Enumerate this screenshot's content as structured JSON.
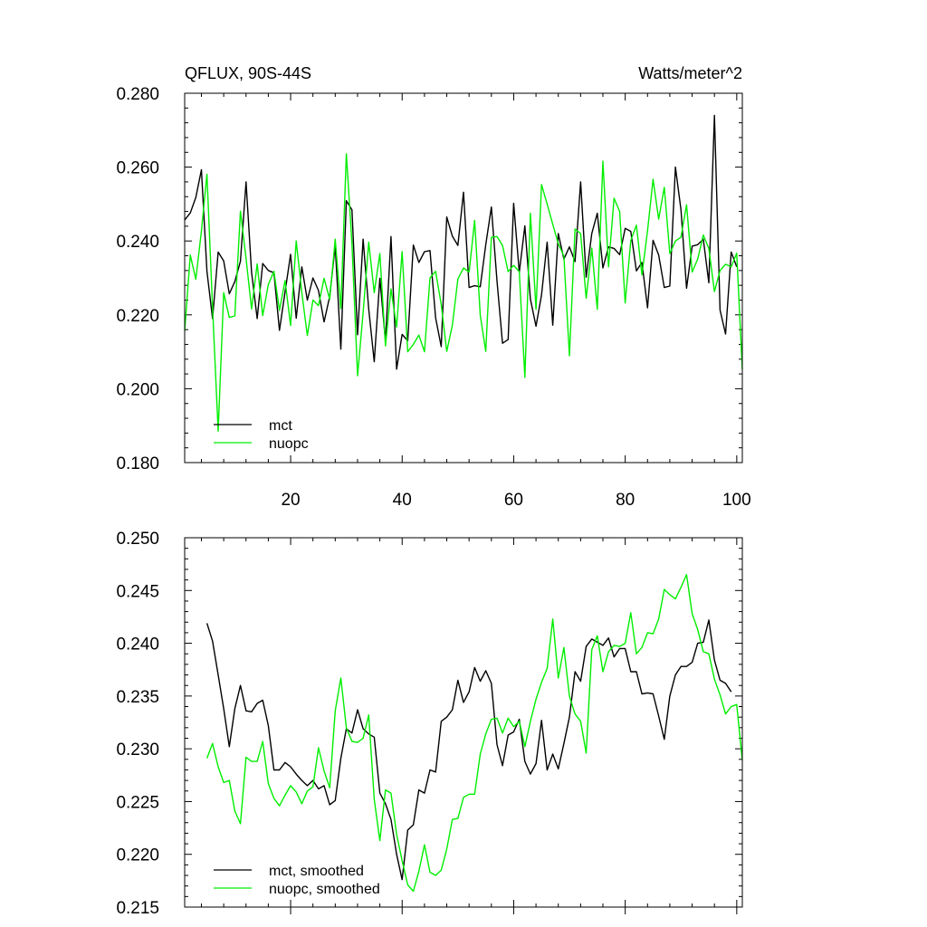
{
  "chart_data": [
    {
      "type": "line",
      "title": "QFLUX, 90S-44S",
      "units": "Watts/meter^2",
      "xlim": [
        1,
        101
      ],
      "ylim": [
        0.18,
        0.28
      ],
      "xticks": [
        20,
        40,
        60,
        80,
        100
      ],
      "xtick_labels": [
        "20",
        "40",
        "60",
        "80",
        "100"
      ],
      "yticks": [
        0.18,
        0.2,
        0.22,
        0.24,
        0.26,
        0.28
      ],
      "ytick_labels": [
        "0.180",
        "0.200",
        "0.220",
        "0.240",
        "0.260",
        "0.280"
      ],
      "legend_position": "bottom-left",
      "series": [
        {
          "name": "mct",
          "color": "#000000",
          "values": [
            0.2457,
            0.2476,
            0.2518,
            0.2593,
            0.2318,
            0.219,
            0.237,
            0.2346,
            0.2257,
            0.229,
            0.2345,
            0.256,
            0.2315,
            0.219,
            0.2339,
            0.232,
            0.2314,
            0.2158,
            0.2262,
            0.2364,
            0.2191,
            0.233,
            0.224,
            0.23,
            0.2266,
            0.2181,
            0.225,
            0.2387,
            0.2107,
            0.2509,
            0.2484,
            0.2146,
            0.2405,
            0.2216,
            0.2073,
            0.2299,
            0.2129,
            0.2412,
            0.2053,
            0.2147,
            0.213,
            0.2389,
            0.2342,
            0.2371,
            0.2374,
            0.2192,
            0.2114,
            0.2465,
            0.2413,
            0.2388,
            0.2532,
            0.2274,
            0.2279,
            0.2276,
            0.239,
            0.2492,
            0.2292,
            0.2123,
            0.2133,
            0.2502,
            0.2315,
            0.2441,
            0.2243,
            0.2169,
            0.2254,
            0.2397,
            0.2172,
            0.242,
            0.2351,
            0.2384,
            0.2344,
            0.256,
            0.2302,
            0.242,
            0.2475,
            0.2327,
            0.2384,
            0.238,
            0.2363,
            0.2434,
            0.2426,
            0.2319,
            0.2342,
            0.2219,
            0.2402,
            0.2362,
            0.2274,
            0.2278,
            0.26,
            0.2485,
            0.2272,
            0.2386,
            0.239,
            0.2405,
            0.2287,
            0.274,
            0.2213,
            0.2148,
            0.237,
            0.233
          ]
        },
        {
          "name": "nuopc",
          "color": "#00ee00",
          "values": [
            0.2157,
            0.2362,
            0.2296,
            0.2427,
            0.2581,
            0.222,
            0.1885,
            0.226,
            0.2193,
            0.2197,
            0.2481,
            0.2353,
            0.2216,
            0.2338,
            0.2198,
            0.2282,
            0.2318,
            0.2212,
            0.2293,
            0.2171,
            0.24,
            0.226,
            0.2144,
            0.224,
            0.2225,
            0.2299,
            0.2242,
            0.2405,
            0.2217,
            0.2636,
            0.2393,
            0.2035,
            0.2206,
            0.2397,
            0.226,
            0.2366,
            0.2116,
            0.227,
            0.2167,
            0.2371,
            0.21,
            0.212,
            0.2145,
            0.21,
            0.23,
            0.2318,
            0.2228,
            0.2101,
            0.2172,
            0.2297,
            0.2327,
            0.2316,
            0.2456,
            0.2199,
            0.2101,
            0.241,
            0.2412,
            0.2388,
            0.2317,
            0.2334,
            0.2317,
            0.2031,
            0.2475,
            0.2215,
            0.2553,
            0.25,
            0.2445,
            0.2393,
            0.2359,
            0.2089,
            0.2432,
            0.242,
            0.2245,
            0.2381,
            0.2215,
            0.2616,
            0.233,
            0.2516,
            0.248,
            0.2232,
            0.2401,
            0.2443,
            0.2308,
            0.2428,
            0.2567,
            0.2459,
            0.2545,
            0.2366,
            0.24,
            0.241,
            0.2498,
            0.2316,
            0.2351,
            0.2416,
            0.238,
            0.2263,
            0.232,
            0.2337,
            0.233,
            0.2367,
            0.2052
          ]
        }
      ]
    },
    {
      "type": "line",
      "title": "",
      "xlim": [
        1,
        101
      ],
      "ylim": [
        0.215,
        0.25
      ],
      "yticks": [
        0.215,
        0.22,
        0.225,
        0.23,
        0.235,
        0.24,
        0.245,
        0.25
      ],
      "ytick_labels": [
        "0.215",
        "0.220",
        "0.225",
        "0.230",
        "0.235",
        "0.240",
        "0.245",
        "0.250"
      ],
      "legend_position": "bottom-left",
      "series": [
        {
          "name": "mct, smoothed",
          "color": "#000000",
          "x_start": 5,
          "values": [
            0.2419,
            0.2402,
            0.237,
            0.2338,
            0.2302,
            0.2338,
            0.236,
            0.2336,
            0.2335,
            0.2343,
            0.2346,
            0.2322,
            0.228,
            0.228,
            0.2287,
            0.2283,
            0.2276,
            0.227,
            0.2265,
            0.227,
            0.2262,
            0.2265,
            0.2247,
            0.2251,
            0.2291,
            0.2319,
            0.2315,
            0.2337,
            0.2319,
            0.2314,
            0.2311,
            0.2258,
            0.2248,
            0.2233,
            0.22,
            0.2176,
            0.2223,
            0.2228,
            0.2261,
            0.2258,
            0.228,
            0.2278,
            0.2326,
            0.233,
            0.2337,
            0.2365,
            0.2344,
            0.2354,
            0.2377,
            0.2364,
            0.2374,
            0.2362,
            0.2304,
            0.2284,
            0.2313,
            0.2316,
            0.2328,
            0.2288,
            0.2276,
            0.2286,
            0.2327,
            0.228,
            0.2295,
            0.2281,
            0.2305,
            0.233,
            0.2373,
            0.2364,
            0.2397,
            0.2404,
            0.2401,
            0.2398,
            0.2405,
            0.2387,
            0.2395,
            0.2395,
            0.2373,
            0.2373,
            0.2352,
            0.2353,
            0.2352,
            0.2331,
            0.2309,
            0.235,
            0.237,
            0.2378,
            0.2378,
            0.2382,
            0.24,
            0.2401,
            0.2422,
            0.2384,
            0.2365,
            0.2362,
            0.2354
          ]
        },
        {
          "name": "nuopc, smoothed",
          "color": "#00ee00",
          "x_start": 5,
          "values": [
            0.2291,
            0.2305,
            0.2283,
            0.2268,
            0.227,
            0.2241,
            0.2229,
            0.2292,
            0.2288,
            0.2288,
            0.2307,
            0.2267,
            0.2253,
            0.2246,
            0.2256,
            0.2265,
            0.2259,
            0.2248,
            0.226,
            0.2264,
            0.2301,
            0.2279,
            0.2263,
            0.2336,
            0.2367,
            0.232,
            0.2307,
            0.2306,
            0.231,
            0.2332,
            0.2252,
            0.2213,
            0.2261,
            0.2258,
            0.2219,
            0.2194,
            0.2171,
            0.2165,
            0.2184,
            0.2209,
            0.2183,
            0.218,
            0.2185,
            0.2205,
            0.2233,
            0.2234,
            0.2254,
            0.2257,
            0.2257,
            0.2295,
            0.2314,
            0.2328,
            0.2329,
            0.2315,
            0.2329,
            0.2321,
            0.2326,
            0.2302,
            0.2326,
            0.2347,
            0.2363,
            0.2376,
            0.2423,
            0.2367,
            0.2396,
            0.235,
            0.2333,
            0.2326,
            0.2296,
            0.2394,
            0.2407,
            0.2373,
            0.2392,
            0.2398,
            0.2397,
            0.24,
            0.2429,
            0.239,
            0.2396,
            0.241,
            0.2409,
            0.2423,
            0.2451,
            0.2446,
            0.2442,
            0.2453,
            0.2465,
            0.2428,
            0.2413,
            0.2392,
            0.239,
            0.2366,
            0.2351,
            0.2333,
            0.234,
            0.2342,
            0.2289
          ]
        }
      ]
    }
  ]
}
